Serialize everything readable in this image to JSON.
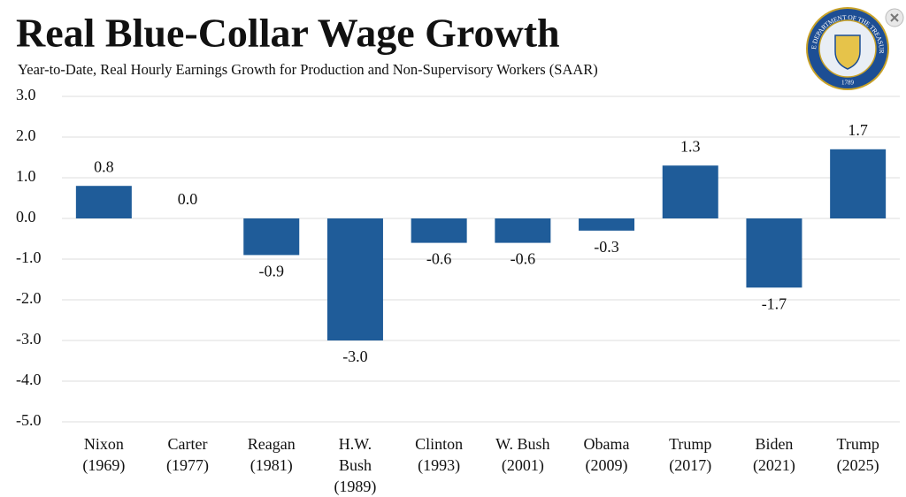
{
  "chart_data": {
    "type": "bar",
    "title": "Real Blue-Collar Wage Growth",
    "subtitle": "Year-to-Date, Real Hourly Earnings Growth for Production and Non-Supervisory Workers (SAAR)",
    "categories": [
      [
        "Nixon",
        "(1969)"
      ],
      [
        "Carter",
        "(1977)"
      ],
      [
        "Reagan",
        "(1981)"
      ],
      [
        "H.W.",
        "Bush",
        "(1989)"
      ],
      [
        "Clinton",
        "(1993)"
      ],
      [
        "W. Bush",
        "(2001)"
      ],
      [
        "Obama",
        "(2009)"
      ],
      [
        "Trump",
        "(2017)"
      ],
      [
        "Biden",
        "(2021)"
      ],
      [
        "Trump",
        "(2025)"
      ]
    ],
    "values": [
      0.8,
      0,
      -0.9,
      -3,
      -0.6,
      -0.6,
      -0.3,
      1.3,
      -1.7,
      1.7
    ],
    "value_labels": [
      "0.8",
      "0.0",
      "-0.9",
      "-3.0",
      "-0.6",
      "-0.6",
      "-0.3",
      "1.3",
      "-1.7",
      "1.7"
    ],
    "color": "#1f5c99",
    "ylim": [
      -5,
      3
    ],
    "yticks": [
      {
        "value": 3,
        "label": "3.0"
      },
      {
        "value": 2,
        "label": "2.0"
      },
      {
        "value": 1,
        "label": "1.0"
      },
      {
        "value": 0,
        "label": "0.0"
      },
      {
        "value": -1,
        "label": "-1.0"
      },
      {
        "value": -2,
        "label": "-2.0"
      },
      {
        "value": -3,
        "label": "-3.0"
      },
      {
        "value": -4,
        "label": "-4.0"
      },
      {
        "value": -5,
        "label": "-5.0"
      }
    ],
    "grid": true
  },
  "logo": {
    "text": "THE DEPARTMENT OF THE TREASURY",
    "year": "1789"
  }
}
